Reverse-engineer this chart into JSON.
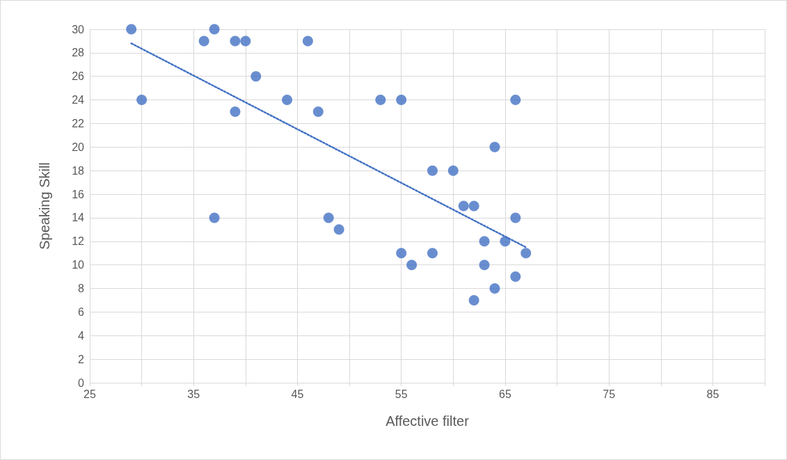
{
  "chart_data": {
    "type": "scatter",
    "xlabel": "Affective filter",
    "ylabel": "Speaking Skill",
    "xlim": [
      25,
      90
    ],
    "xticks": [
      25,
      {
        "value": 30,
        "label": null
      },
      35,
      {
        "value": 40,
        "label": null
      },
      45,
      {
        "value": 50,
        "label": null
      },
      55,
      {
        "value": 60,
        "label": null
      },
      65,
      {
        "value": 70,
        "label": null
      },
      75,
      {
        "value": 80,
        "label": null
      },
      85,
      {
        "value": 90,
        "label": null
      }
    ],
    "ylim": [
      0,
      30
    ],
    "yticks": [
      0,
      2,
      4,
      6,
      8,
      10,
      12,
      14,
      16,
      18,
      20,
      22,
      24,
      26,
      28,
      30
    ],
    "grid": true,
    "series": [
      {
        "color": "#4472c4",
        "marker": "circle",
        "x": [
          29,
          30,
          36,
          37,
          37,
          39,
          39,
          40,
          41,
          44,
          46,
          47,
          48,
          49,
          53,
          55,
          55,
          56,
          58,
          58,
          60,
          61,
          62,
          62,
          63,
          63,
          64,
          64,
          65,
          66,
          66,
          66,
          67
        ],
        "values": [
          30,
          24,
          29,
          30,
          14,
          29,
          23,
          29,
          26,
          24,
          29,
          23,
          14,
          13,
          24,
          24,
          11,
          10,
          18,
          11,
          18,
          15,
          15,
          7,
          12,
          10,
          20,
          8,
          12,
          24,
          14,
          9,
          11
        ]
      },
      {
        "type": "line",
        "color": "#4472c4",
        "marker": "none",
        "line_style": "dotted",
        "x": [
          29,
          67
        ],
        "values": [
          28.8,
          11.5
        ]
      }
    ]
  }
}
